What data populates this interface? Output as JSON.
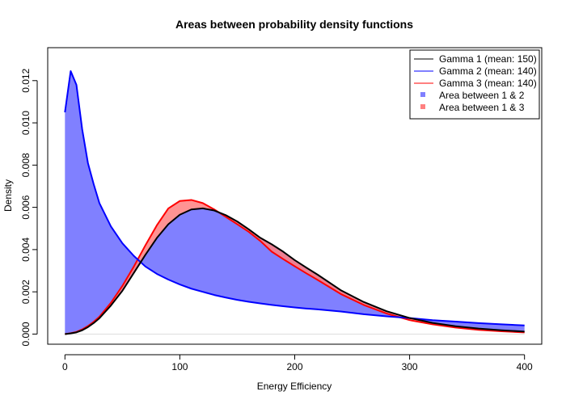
{
  "chart_data": {
    "type": "area",
    "title": "Areas between probability density functions",
    "xlabel": "Energy Efficiency",
    "ylabel": "Density",
    "xlim": [
      -15,
      415
    ],
    "ylim": [
      -0.00048,
      0.01356
    ],
    "x_ticks": [
      0,
      100,
      200,
      300,
      400
    ],
    "x_tick_labels": [
      "0",
      "100",
      "200",
      "300",
      "400"
    ],
    "y_ticks": [
      0,
      0.002,
      0.004,
      0.006,
      0.008,
      0.01,
      0.012
    ],
    "y_tick_labels": [
      "0.000",
      "0.002",
      "0.004",
      "0.006",
      "0.008",
      "0.010",
      "0.012"
    ],
    "grid": false,
    "legend_position": "top-right",
    "x": [
      0,
      5,
      10,
      15,
      20,
      25,
      30,
      40,
      50,
      60,
      70,
      80,
      90,
      100,
      110,
      120,
      130,
      140,
      150,
      160,
      170,
      180,
      190,
      200,
      210,
      220,
      240,
      260,
      280,
      300,
      320,
      340,
      360,
      380,
      400
    ],
    "series": [
      {
        "name": "Gamma 1 (mean: 150)",
        "color": "#000000",
        "values": [
          0.0,
          3e-05,
          8e-05,
          0.00018,
          0.00033,
          0.00052,
          0.00075,
          0.00135,
          0.00205,
          0.0029,
          0.00375,
          0.00455,
          0.0052,
          0.00565,
          0.0059,
          0.00595,
          0.00585,
          0.00563,
          0.00533,
          0.00496,
          0.00456,
          0.00425,
          0.0039,
          0.0035,
          0.00315,
          0.00281,
          0.00208,
          0.00152,
          0.00108,
          0.00076,
          0.00053,
          0.00037,
          0.00026,
          0.00018,
          0.00012
        ]
      },
      {
        "name": "Gamma 2 (mean: 140)",
        "color": "#0000ff",
        "values": [
          0.0105,
          0.01245,
          0.0118,
          0.0097,
          0.0081,
          0.0071,
          0.0062,
          0.0051,
          0.0043,
          0.0037,
          0.0032,
          0.00285,
          0.00258,
          0.00235,
          0.00215,
          0.002,
          0.00185,
          0.00173,
          0.00162,
          0.00153,
          0.00145,
          0.00138,
          0.00132,
          0.00126,
          0.00121,
          0.00117,
          0.00107,
          0.00094,
          0.00084,
          0.00076,
          0.00066,
          0.00059,
          0.00052,
          0.00046,
          0.00041
        ]
      },
      {
        "name": "Gamma 3 (mean: 140)",
        "color": "#ff0000",
        "values": [
          0.0,
          4e-05,
          0.0001,
          0.00022,
          0.00038,
          0.00058,
          0.00082,
          0.00148,
          0.00228,
          0.0032,
          0.0042,
          0.00515,
          0.00595,
          0.0063,
          0.00635,
          0.0062,
          0.0059,
          0.00555,
          0.0052,
          0.00484,
          0.00441,
          0.0039,
          0.00355,
          0.00321,
          0.00288,
          0.00256,
          0.0019,
          0.00138,
          0.00097,
          0.00066,
          0.00046,
          0.00031,
          0.0002,
          0.00013,
          8e-05
        ]
      }
    ],
    "fill_areas": [
      {
        "name": "Area between 1 & 2",
        "between": [
          0,
          1
        ],
        "color": "#8080ff"
      },
      {
        "name": "Area between 1 & 3",
        "between": [
          0,
          2
        ],
        "color": "#ff8080"
      }
    ]
  }
}
